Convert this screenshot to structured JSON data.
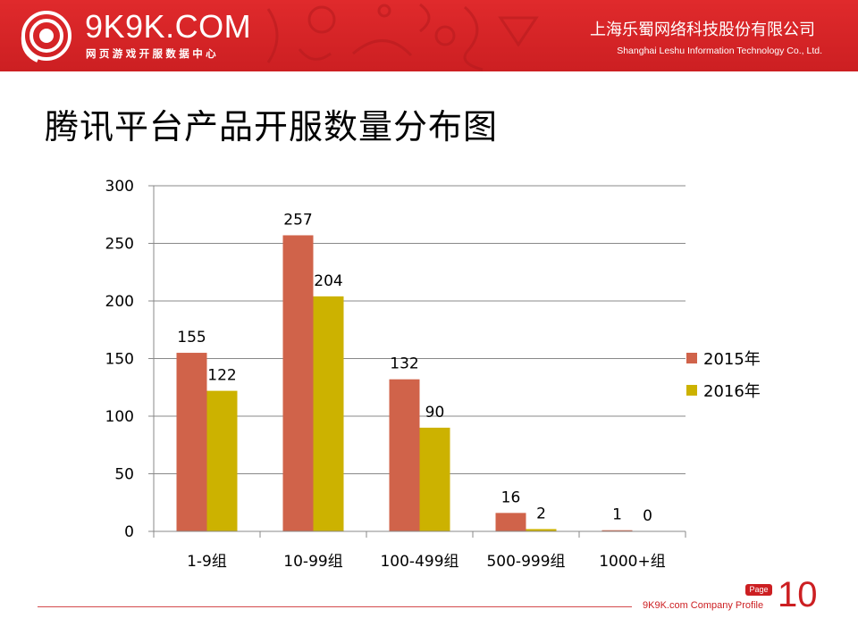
{
  "header": {
    "logo_text": "9K9K.COM",
    "logo_subtitle": "网页游戏开服数据中心",
    "company_cn": "上海乐蜀网络科技股份有限公司",
    "company_en": "Shanghai Leshu Information Technology Co., Ltd.",
    "logo_icon": "spiral-logo-icon",
    "brand_color": "#cc1f22"
  },
  "title": "腾讯平台产品开服数量分布图",
  "chart_data": {
    "type": "bar",
    "title": "腾讯平台产品开服数量分布图",
    "categories": [
      "1-9组",
      "10-99组",
      "100-499组",
      "500-999组",
      "1000+组"
    ],
    "series": [
      {
        "name": "2015年",
        "values": [
          155,
          257,
          132,
          16,
          1
        ],
        "color": "#d0634a"
      },
      {
        "name": "2016年",
        "values": [
          122,
          204,
          90,
          2,
          0
        ],
        "color": "#ccb200"
      }
    ],
    "ylim": [
      0,
      300
    ],
    "yticks": [
      0,
      50,
      100,
      150,
      200,
      250,
      300
    ],
    "xlabel": "",
    "ylabel": "",
    "grid": true,
    "legend": "right"
  },
  "footer": {
    "profile": "9K9K.com Company Profile",
    "page_label": "Page",
    "page_number": "10"
  }
}
